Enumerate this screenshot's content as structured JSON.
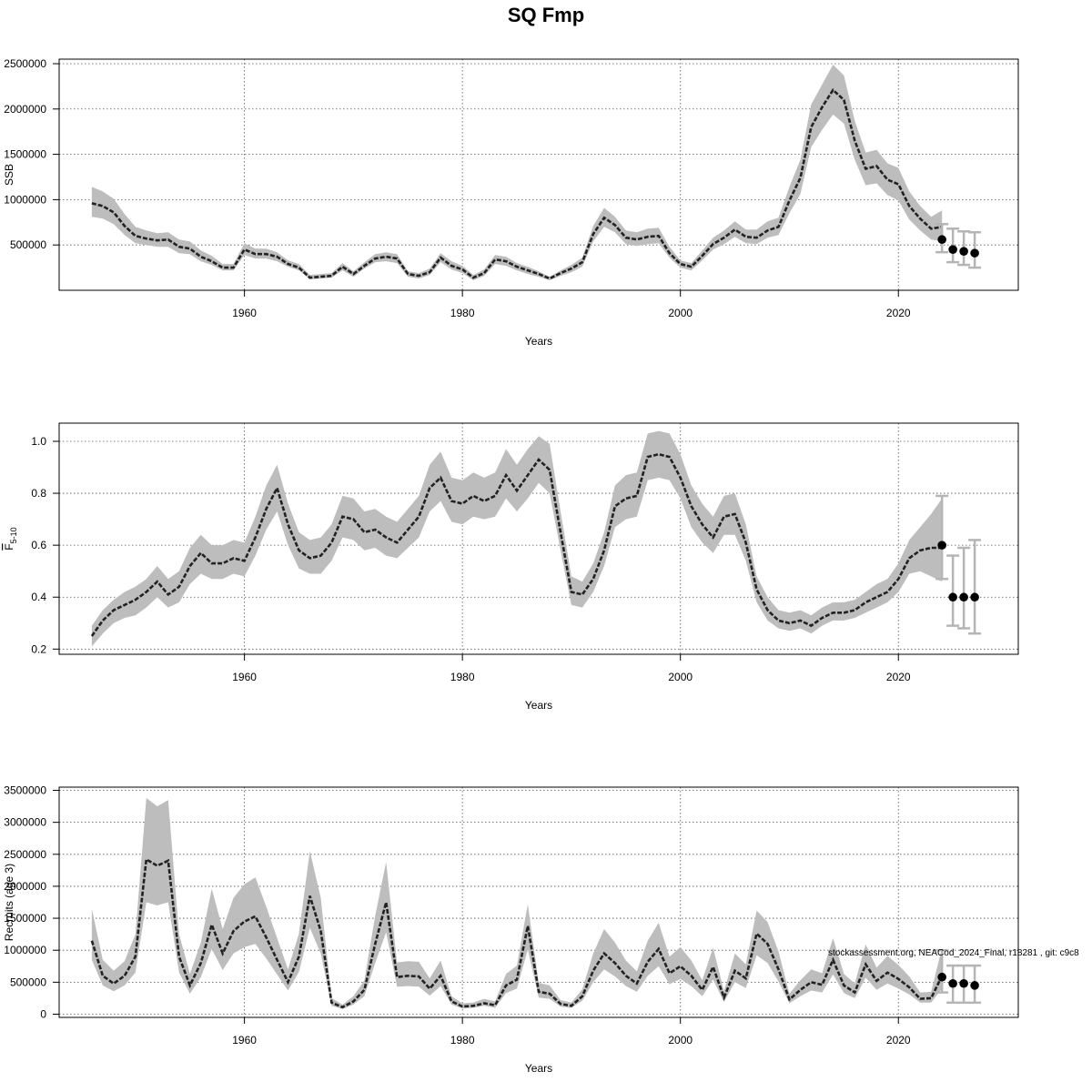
{
  "title": "SQ Fmp",
  "footnote": "stockassessment.org, NEACod_2024_Final, r18281 , git: c9c8",
  "chart_data": [
    {
      "type": "line",
      "ylabel": "SSB",
      "ylabel_html": "SSB",
      "xlabel": "Years",
      "xlim": [
        1943,
        2031
      ],
      "ylim": [
        0,
        2550000
      ],
      "xticks": [
        1960,
        1980,
        2000,
        2020
      ],
      "xtick_labels": [
        "1960",
        "1980",
        "2000",
        "2020"
      ],
      "yticks": [
        500000,
        1000000,
        1500000,
        2000000,
        2500000
      ],
      "ytick_labels": [
        "500000",
        "1000000",
        "1500000",
        "2000000",
        "2500000"
      ],
      "x": [
        1946,
        1947,
        1948,
        1949,
        1950,
        1951,
        1952,
        1953,
        1954,
        1955,
        1956,
        1957,
        1958,
        1959,
        1960,
        1961,
        1962,
        1963,
        1964,
        1965,
        1966,
        1967,
        1968,
        1969,
        1970,
        1971,
        1972,
        1973,
        1974,
        1975,
        1976,
        1977,
        1978,
        1979,
        1980,
        1981,
        1982,
        1983,
        1984,
        1985,
        1986,
        1987,
        1988,
        1989,
        1990,
        1991,
        1992,
        1993,
        1994,
        1995,
        1996,
        1997,
        1998,
        1999,
        2000,
        2001,
        2002,
        2003,
        2004,
        2005,
        2006,
        2007,
        2008,
        2009,
        2010,
        2011,
        2012,
        2013,
        2014,
        2015,
        2016,
        2017,
        2018,
        2019,
        2020,
        2021,
        2022,
        2023,
        2024
      ],
      "estimate": [
        960000,
        930000,
        860000,
        710000,
        600000,
        570000,
        550000,
        560000,
        480000,
        460000,
        370000,
        320000,
        250000,
        250000,
        450000,
        400000,
        400000,
        370000,
        290000,
        250000,
        140000,
        150000,
        160000,
        260000,
        180000,
        270000,
        350000,
        370000,
        350000,
        180000,
        160000,
        200000,
        360000,
        270000,
        230000,
        140000,
        190000,
        340000,
        320000,
        260000,
        220000,
        180000,
        130000,
        190000,
        240000,
        310000,
        620000,
        800000,
        720000,
        580000,
        560000,
        590000,
        600000,
        410000,
        290000,
        260000,
        380000,
        510000,
        580000,
        670000,
        590000,
        580000,
        660000,
        700000,
        990000,
        1240000,
        1800000,
        2020000,
        2210000,
        2100000,
        1650000,
        1340000,
        1370000,
        1220000,
        1170000,
        930000,
        790000,
        680000,
        700000
      ],
      "lower": [
        810000,
        790000,
        730000,
        610000,
        520000,
        500000,
        480000,
        480000,
        410000,
        400000,
        320000,
        280000,
        220000,
        220000,
        390000,
        350000,
        350000,
        320000,
        260000,
        220000,
        120000,
        130000,
        140000,
        220000,
        150000,
        240000,
        310000,
        320000,
        300000,
        150000,
        130000,
        170000,
        310000,
        230000,
        190000,
        110000,
        160000,
        290000,
        270000,
        220000,
        180000,
        150000,
        110000,
        160000,
        200000,
        260000,
        540000,
        700000,
        640000,
        510000,
        490000,
        510000,
        520000,
        360000,
        250000,
        220000,
        330000,
        450000,
        510000,
        590000,
        520000,
        510000,
        580000,
        610000,
        850000,
        1060000,
        1580000,
        1770000,
        1940000,
        1840000,
        1440000,
        1160000,
        1180000,
        1050000,
        990000,
        780000,
        660000,
        560000,
        540000
      ],
      "upper": [
        1140000,
        1090000,
        1010000,
        840000,
        700000,
        660000,
        630000,
        640000,
        560000,
        540000,
        440000,
        380000,
        290000,
        290000,
        520000,
        460000,
        460000,
        420000,
        330000,
        290000,
        170000,
        180000,
        190000,
        300000,
        210000,
        310000,
        400000,
        420000,
        400000,
        210000,
        190000,
        240000,
        410000,
        320000,
        270000,
        170000,
        230000,
        390000,
        370000,
        300000,
        260000,
        210000,
        150000,
        220000,
        280000,
        360000,
        710000,
        910000,
        810000,
        660000,
        640000,
        680000,
        690000,
        480000,
        330000,
        300000,
        440000,
        580000,
        660000,
        760000,
        670000,
        670000,
        760000,
        800000,
        1140000,
        1440000,
        2050000,
        2270000,
        2490000,
        2370000,
        1870000,
        1520000,
        1550000,
        1400000,
        1350000,
        1090000,
        930000,
        810000,
        880000
      ],
      "forecast": {
        "x": [
          2024,
          2025,
          2026,
          2027
        ],
        "median": [
          560000,
          450000,
          430000,
          410000
        ],
        "low": [
          420000,
          310000,
          280000,
          250000
        ],
        "high": [
          730000,
          680000,
          650000,
          640000
        ]
      }
    },
    {
      "type": "line",
      "ylabel": "F5-10",
      "ylabel_html": "F̅ 5-10",
      "xlabel": "Years",
      "xlim": [
        1943,
        2031
      ],
      "ylim": [
        0.18,
        1.07
      ],
      "xticks": [
        1960,
        1980,
        2000,
        2020
      ],
      "xtick_labels": [
        "1960",
        "1980",
        "2000",
        "2020"
      ],
      "yticks": [
        0.2,
        0.4,
        0.6,
        0.8,
        1.0
      ],
      "ytick_labels": [
        "0.2",
        "0.4",
        "0.6",
        "0.8",
        "1.0"
      ],
      "x": [
        1946,
        1947,
        1948,
        1949,
        1950,
        1951,
        1952,
        1953,
        1954,
        1955,
        1956,
        1957,
        1958,
        1959,
        1960,
        1961,
        1962,
        1963,
        1964,
        1965,
        1966,
        1967,
        1968,
        1969,
        1970,
        1971,
        1972,
        1973,
        1974,
        1975,
        1976,
        1977,
        1978,
        1979,
        1980,
        1981,
        1982,
        1983,
        1984,
        1985,
        1986,
        1987,
        1988,
        1989,
        1990,
        1991,
        1992,
        1993,
        1994,
        1995,
        1996,
        1997,
        1998,
        1999,
        2000,
        2001,
        2002,
        2003,
        2004,
        2005,
        2006,
        2007,
        2008,
        2009,
        2010,
        2011,
        2012,
        2013,
        2014,
        2015,
        2016,
        2017,
        2018,
        2019,
        2020,
        2021,
        2022,
        2023,
        2024
      ],
      "estimate": [
        0.25,
        0.31,
        0.35,
        0.37,
        0.39,
        0.42,
        0.46,
        0.41,
        0.44,
        0.52,
        0.57,
        0.53,
        0.53,
        0.55,
        0.54,
        0.63,
        0.74,
        0.82,
        0.68,
        0.58,
        0.55,
        0.56,
        0.61,
        0.71,
        0.7,
        0.65,
        0.66,
        0.63,
        0.61,
        0.66,
        0.71,
        0.82,
        0.86,
        0.77,
        0.76,
        0.79,
        0.77,
        0.79,
        0.87,
        0.81,
        0.87,
        0.93,
        0.89,
        0.65,
        0.42,
        0.41,
        0.47,
        0.58,
        0.75,
        0.78,
        0.79,
        0.94,
        0.95,
        0.94,
        0.86,
        0.75,
        0.68,
        0.63,
        0.71,
        0.72,
        0.61,
        0.43,
        0.35,
        0.31,
        0.3,
        0.31,
        0.29,
        0.32,
        0.34,
        0.34,
        0.35,
        0.38,
        0.4,
        0.42,
        0.47,
        0.55,
        0.58,
        0.59,
        0.59
      ],
      "lower": [
        0.21,
        0.26,
        0.3,
        0.32,
        0.33,
        0.36,
        0.4,
        0.36,
        0.38,
        0.45,
        0.49,
        0.47,
        0.47,
        0.49,
        0.48,
        0.56,
        0.66,
        0.73,
        0.6,
        0.51,
        0.49,
        0.49,
        0.54,
        0.63,
        0.62,
        0.58,
        0.59,
        0.56,
        0.55,
        0.59,
        0.63,
        0.73,
        0.77,
        0.69,
        0.68,
        0.71,
        0.7,
        0.71,
        0.78,
        0.73,
        0.78,
        0.84,
        0.8,
        0.58,
        0.37,
        0.36,
        0.42,
        0.52,
        0.67,
        0.7,
        0.71,
        0.85,
        0.86,
        0.85,
        0.78,
        0.67,
        0.61,
        0.57,
        0.64,
        0.64,
        0.54,
        0.38,
        0.31,
        0.28,
        0.27,
        0.28,
        0.26,
        0.29,
        0.31,
        0.31,
        0.32,
        0.34,
        0.36,
        0.38,
        0.42,
        0.49,
        0.5,
        0.48,
        0.46
      ],
      "upper": [
        0.29,
        0.35,
        0.39,
        0.42,
        0.44,
        0.47,
        0.52,
        0.47,
        0.5,
        0.59,
        0.64,
        0.6,
        0.6,
        0.62,
        0.61,
        0.71,
        0.83,
        0.91,
        0.76,
        0.65,
        0.62,
        0.63,
        0.68,
        0.79,
        0.78,
        0.73,
        0.74,
        0.71,
        0.69,
        0.74,
        0.79,
        0.91,
        0.96,
        0.86,
        0.85,
        0.88,
        0.86,
        0.88,
        0.97,
        0.91,
        0.97,
        1.02,
        0.99,
        0.73,
        0.48,
        0.46,
        0.53,
        0.65,
        0.83,
        0.87,
        0.88,
        1.03,
        1.04,
        1.03,
        0.95,
        0.83,
        0.76,
        0.71,
        0.79,
        0.8,
        0.68,
        0.48,
        0.4,
        0.35,
        0.34,
        0.35,
        0.33,
        0.36,
        0.38,
        0.38,
        0.39,
        0.42,
        0.45,
        0.47,
        0.53,
        0.62,
        0.67,
        0.72,
        0.78
      ],
      "forecast": {
        "x": [
          2024,
          2025,
          2026,
          2027
        ],
        "median": [
          0.6,
          0.4,
          0.4,
          0.4
        ],
        "low": [
          0.47,
          0.29,
          0.28,
          0.26
        ],
        "high": [
          0.79,
          0.56,
          0.59,
          0.62
        ]
      }
    },
    {
      "type": "line",
      "ylabel": "Recruits (age 3)",
      "ylabel_html": "Recruits (age 3)",
      "xlabel": "Years",
      "xlim": [
        1943,
        2031
      ],
      "ylim": [
        -50000,
        3550000
      ],
      "xticks": [
        1960,
        1980,
        2000,
        2020
      ],
      "xtick_labels": [
        "1960",
        "1980",
        "2000",
        "2020"
      ],
      "yticks": [
        0,
        500000,
        1000000,
        1500000,
        2000000,
        2500000,
        3000000,
        3500000
      ],
      "ytick_labels": [
        "0",
        "500000",
        "1000000",
        "1500000",
        "2000000",
        "2500000",
        "3000000",
        "3500000"
      ],
      "x": [
        1946,
        1947,
        1948,
        1949,
        1950,
        1951,
        1952,
        1953,
        1954,
        1955,
        1956,
        1957,
        1958,
        1959,
        1960,
        1961,
        1962,
        1963,
        1964,
        1965,
        1966,
        1967,
        1968,
        1969,
        1970,
        1971,
        1972,
        1973,
        1974,
        1975,
        1976,
        1977,
        1978,
        1979,
        1980,
        1981,
        1982,
        1983,
        1984,
        1985,
        1986,
        1987,
        1988,
        1989,
        1990,
        1991,
        1992,
        1993,
        1994,
        1995,
        1996,
        1997,
        1998,
        1999,
        2000,
        2001,
        2002,
        2003,
        2004,
        2005,
        2006,
        2007,
        2008,
        2009,
        2010,
        2011,
        2012,
        2013,
        2014,
        2015,
        2016,
        2017,
        2018,
        2019,
        2020,
        2021,
        2022,
        2023,
        2024
      ],
      "estimate": [
        1150000,
        600000,
        480000,
        600000,
        900000,
        2420000,
        2320000,
        2400000,
        900000,
        450000,
        800000,
        1400000,
        950000,
        1300000,
        1450000,
        1530000,
        1200000,
        850000,
        500000,
        900000,
        1850000,
        1300000,
        180000,
        110000,
        200000,
        380000,
        1100000,
        1750000,
        580000,
        600000,
        590000,
        400000,
        600000,
        200000,
        120000,
        130000,
        170000,
        140000,
        450000,
        540000,
        1380000,
        350000,
        320000,
        160000,
        130000,
        280000,
        680000,
        950000,
        800000,
        600000,
        480000,
        820000,
        1020000,
        640000,
        750000,
        600000,
        380000,
        740000,
        260000,
        680000,
        560000,
        1260000,
        1100000,
        700000,
        230000,
        380000,
        500000,
        460000,
        850000,
        450000,
        340000,
        780000,
        520000,
        650000,
        550000,
        420000,
        240000,
        250000,
        600000
      ],
      "lower": [
        850000,
        450000,
        360000,
        450000,
        650000,
        1750000,
        1700000,
        1750000,
        650000,
        320000,
        580000,
        1020000,
        690000,
        950000,
        1050000,
        1100000,
        870000,
        620000,
        370000,
        660000,
        1350000,
        950000,
        130000,
        80000,
        150000,
        280000,
        800000,
        1280000,
        430000,
        440000,
        430000,
        290000,
        440000,
        150000,
        90000,
        100000,
        130000,
        100000,
        330000,
        400000,
        1010000,
        260000,
        240000,
        120000,
        100000,
        210000,
        500000,
        700000,
        590000,
        440000,
        350000,
        600000,
        750000,
        470000,
        550000,
        440000,
        280000,
        540000,
        190000,
        500000,
        410000,
        920000,
        800000,
        510000,
        170000,
        280000,
        370000,
        340000,
        620000,
        330000,
        250000,
        570000,
        380000,
        480000,
        400000,
        310000,
        180000,
        180000,
        400000
      ],
      "upper": [
        1650000,
        850000,
        680000,
        830000,
        1250000,
        3380000,
        3250000,
        3350000,
        1250000,
        630000,
        1120000,
        1960000,
        1330000,
        1820000,
        2030000,
        2140000,
        1680000,
        1190000,
        700000,
        1260000,
        2550000,
        1820000,
        250000,
        150000,
        280000,
        530000,
        1540000,
        2380000,
        810000,
        830000,
        820000,
        560000,
        840000,
        280000,
        170000,
        180000,
        240000,
        200000,
        630000,
        760000,
        1720000,
        490000,
        450000,
        220000,
        180000,
        390000,
        950000,
        1330000,
        1120000,
        840000,
        670000,
        1150000,
        1430000,
        900000,
        1050000,
        840000,
        530000,
        1040000,
        360000,
        950000,
        780000,
        1620000,
        1440000,
        980000,
        320000,
        530000,
        700000,
        640000,
        1190000,
        630000,
        480000,
        1090000,
        730000,
        910000,
        770000,
        590000,
        340000,
        350000,
        1040000
      ],
      "forecast": {
        "x": [
          2024,
          2025,
          2026,
          2027
        ],
        "median": [
          580000,
          480000,
          480000,
          450000
        ],
        "low": [
          340000,
          180000,
          180000,
          180000
        ],
        "high": [
          1000000,
          760000,
          760000,
          760000
        ]
      }
    }
  ]
}
